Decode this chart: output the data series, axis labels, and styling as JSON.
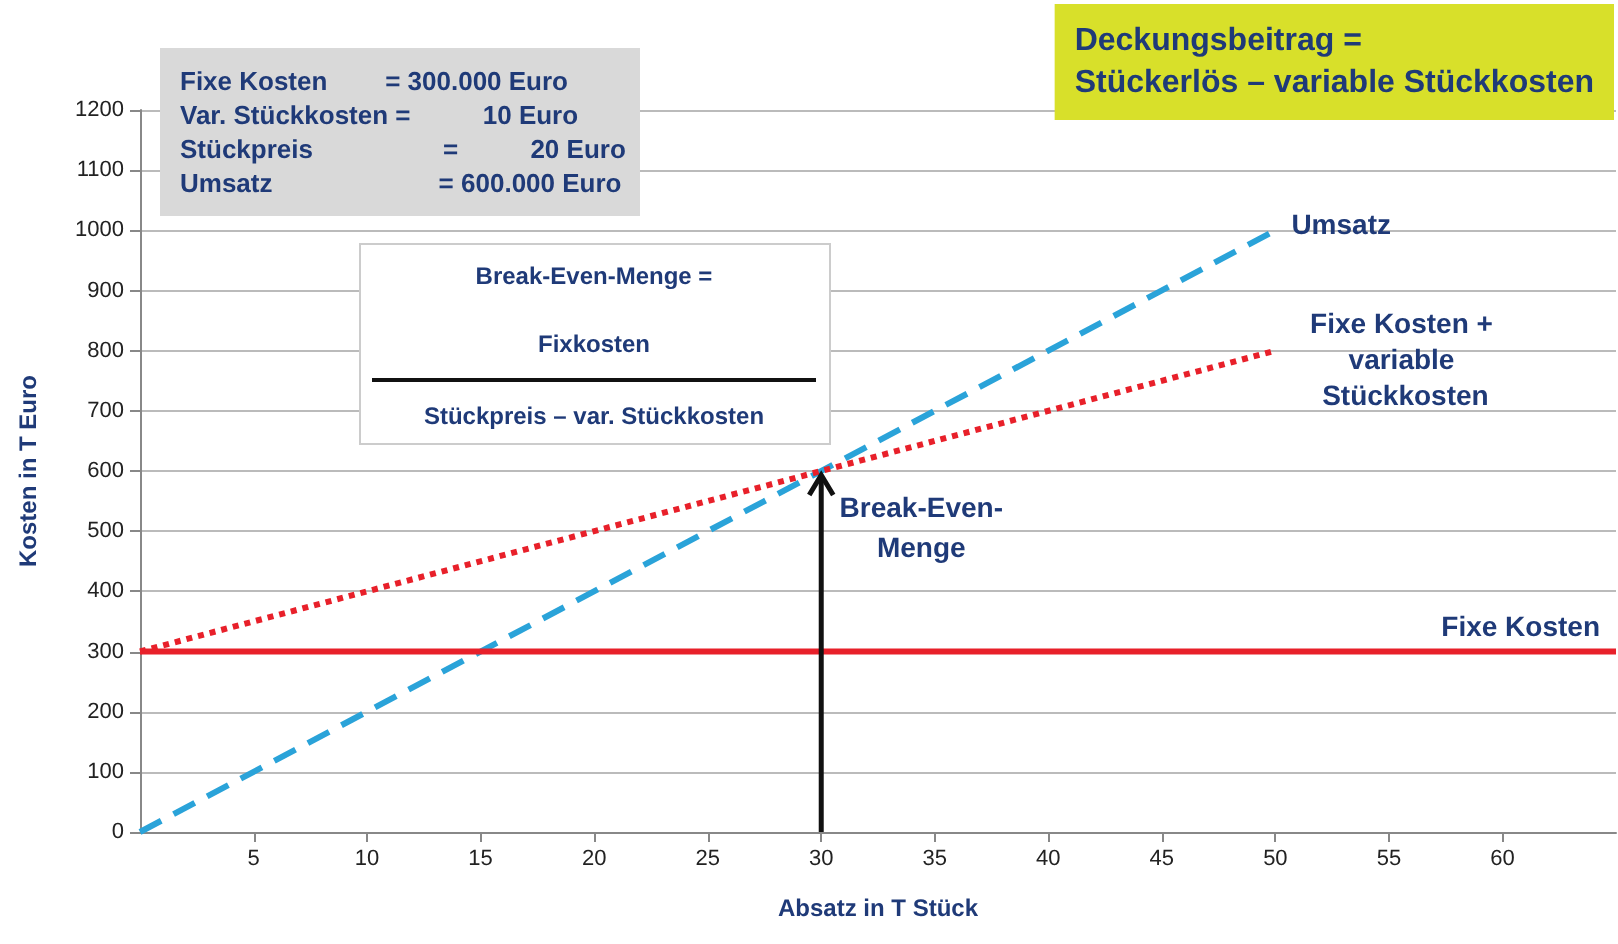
{
  "chart_data": {
    "type": "line",
    "title": "Deckungsbeitrag =\nStückerlös – variable Stückkosten",
    "xlabel": "Absatz in T Stück",
    "ylabel": "Kosten in T Euro",
    "series": [
      {
        "name": "Umsatz",
        "color": "#2aa3d9",
        "x": [
          0,
          50
        ],
        "values": [
          0,
          1000
        ],
        "line_style": "dashed"
      },
      {
        "name": "Fixe Kosten + variable Stückkosten",
        "color": "#e8202a",
        "x": [
          0,
          50
        ],
        "values": [
          300,
          800
        ],
        "line_style": "dotted"
      },
      {
        "name": "Fixe Kosten",
        "color": "#e8202a",
        "x": [
          0,
          65
        ],
        "values": [
          300,
          300
        ],
        "line_style": "solid"
      }
    ],
    "xlim": [
      0,
      65
    ],
    "xticks": [
      5,
      10,
      15,
      20,
      25,
      30,
      35,
      40,
      45,
      50,
      55,
      60
    ],
    "ylim": [
      0,
      1200
    ],
    "yticks": [
      0,
      100,
      200,
      300,
      400,
      500,
      600,
      700,
      800,
      900,
      1000,
      1100,
      1200
    ],
    "grid": "y",
    "legend": false,
    "marker": "none",
    "annotations": [
      "Fixe Kosten        = 300.000 Euro\nVar. Stückkosten =          10 Euro\nStückpreis                  =          20 Euro\nUmsatz                       = 600.000 Euro",
      "Break-Even-Menge =",
      "Fixkosten",
      "Stückpreis – var. Stückkosten",
      {
        "text": "Break-Even-Menge",
        "x": 30,
        "y": 600
      }
    ]
  }
}
